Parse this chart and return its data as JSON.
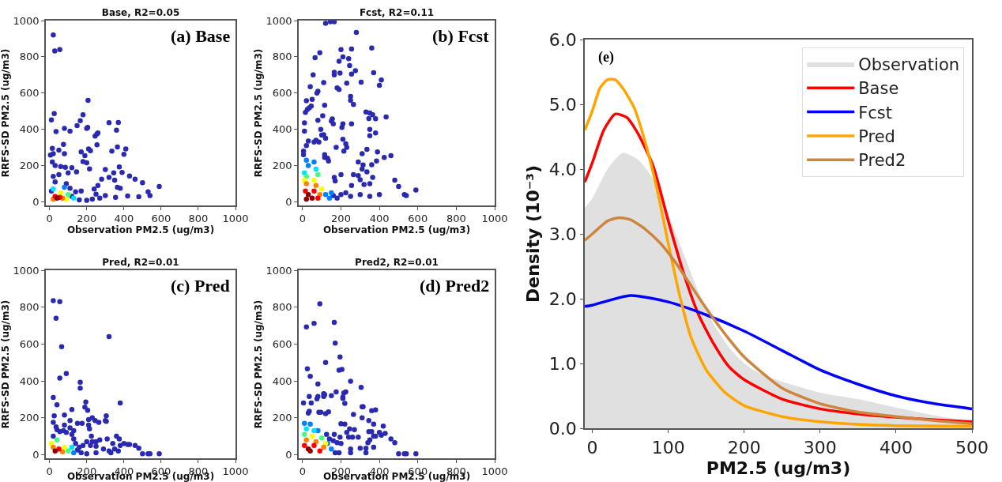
{
  "chart_data": [
    {
      "type": "scatter",
      "title": "Base, R2=0.05",
      "annotations": [
        "(a) Base"
      ],
      "xlabel": "Observation PM2.5 (ug/m3)",
      "ylabel": "RRFS-SD PM2.5 (ug/m3)",
      "marker": "circle",
      "xlim": [
        -20,
        1000
      ],
      "ylim": [
        -20,
        1000
      ],
      "xticks": [
        0,
        200,
        400,
        600,
        800,
        1000
      ],
      "yticks": [
        0,
        200,
        400,
        600,
        800,
        1000
      ],
      "x": [
        20,
        28,
        55,
        25,
        10,
        35,
        80,
        110,
        148,
        165,
        180,
        207,
        205,
        200,
        245,
        255,
        260,
        255,
        75,
        15,
        5,
        20,
        50,
        170,
        210,
        220,
        190,
        320,
        370,
        360,
        400,
        410,
        365,
        335,
        80,
        15,
        30,
        60,
        85,
        120,
        180,
        215,
        200,
        300,
        345,
        390,
        375,
        430,
        460,
        500,
        590,
        530,
        540,
        480,
        420,
        355,
        300,
        270,
        230,
        200,
        160,
        250,
        260,
        280,
        320,
        350,
        365,
        380,
        240,
        145,
        100,
        50,
        20,
        30,
        90,
        110,
        140,
        120,
        170,
        10,
        80,
        20,
        130,
        100,
        90,
        60,
        70,
        20,
        55,
        30,
        40
      ],
      "values": [
        920,
        832,
        840,
        487,
        452,
        388,
        405,
        390,
        420,
        447,
        480,
        560,
        410,
        405,
        362,
        375,
        380,
        315,
        317,
        295,
        258,
        265,
        285,
        275,
        292,
        282,
        255,
        437,
        438,
        395,
        262,
        292,
        303,
        280,
        265,
        220,
        200,
        195,
        190,
        188,
        222,
        182,
        215,
        178,
        160,
        162,
        192,
        142,
        125,
        105,
        85,
        55,
        35,
        28,
        32,
        25,
        35,
        20,
        15,
        8,
        10,
        42,
        90,
        125,
        135,
        120,
        80,
        75,
        70,
        165,
        160,
        150,
        140,
        110,
        100,
        75,
        55,
        30,
        60,
        60,
        80,
        70,
        20,
        40,
        15,
        50,
        20,
        15,
        25,
        30,
        20
      ],
      "colors": [
        "#2a2ab0",
        "#2a2ab0",
        "#2a2ab0",
        "#2a2ab0",
        "#2a2ab0",
        "#2a2ab0",
        "#2a2ab0",
        "#2a2ab0",
        "#2a2ab0",
        "#2a2ab0",
        "#2a2ab0",
        "#2a2ab0",
        "#2a2ab0",
        "#2a2ab0",
        "#2a2ab0",
        "#2a2ab0",
        "#2a2ab0",
        "#2a2ab0",
        "#2a2ab0",
        "#2a2ab0",
        "#2a2ab0",
        "#2a2ab0",
        "#2a2ab0",
        "#2a2ab0",
        "#2a2ab0",
        "#2a2ab0",
        "#2a2ab0",
        "#2a2ab0",
        "#2a2ab0",
        "#2a2ab0",
        "#2a2ab0",
        "#2a2ab0",
        "#2a2ab0",
        "#2a2ab0",
        "#2a2ab0",
        "#2a2ab0",
        "#2a2ab0",
        "#2a2ab0",
        "#2a2ab0",
        "#2a2ab0",
        "#2a2ab0",
        "#2a2ab0",
        "#2a2ab0",
        "#2a2ab0",
        "#2a2ab0",
        "#2a2ab0",
        "#2a2ab0",
        "#2a2ab0",
        "#2a2ab0",
        "#2a2ab0",
        "#2a2ab0",
        "#2a2ab0",
        "#2a2ab0",
        "#2a2ab0",
        "#2a2ab0",
        "#2a2ab0",
        "#2a2ab0",
        "#2a2ab0",
        "#2a2ab0",
        "#2a2ab0",
        "#2a2ab0",
        "#2a2ab0",
        "#2a2ab0",
        "#2a2ab0",
        "#2a2ab0",
        "#2a2ab0",
        "#2a2ab0",
        "#2a2ab0",
        "#2a2ab0",
        "#2a2ab0",
        "#2a2ab0",
        "#2a2ab0",
        "#2a2ab0",
        "#2a2ab0",
        "#2a2ab0",
        "#2a2ab0",
        "#2a2ab0",
        "#2a2ab0",
        "#2a2ab0",
        "#2a2ab0",
        "#0080ff",
        "#00e0ff",
        "#00e0ff",
        "#40ff80",
        "#ffff00",
        "#ffff00",
        "#ff8000",
        "#ff8000",
        "#ff0000",
        "#ff0000",
        "#8b0000"
      ]
    },
    {
      "type": "scatter",
      "title": "Fcst, R2=0.11",
      "annotations": [
        "(b) Fcst"
      ],
      "xlabel": "Observation PM2.5 (ug/m3)",
      "ylabel": "RRFS-SD PM2.5 (ug/m3)",
      "marker": "circle",
      "xlim": [
        -20,
        1000
      ],
      "ylim": [
        -20,
        1000
      ],
      "xticks": [
        0,
        200,
        400,
        600,
        800,
        1000
      ],
      "yticks": [
        0,
        200,
        400,
        600,
        800,
        1000
      ],
      "x": [
        120,
        145,
        165,
        280,
        360,
        255,
        200,
        90,
        65,
        210,
        240,
        190,
        245,
        165,
        195,
        275,
        165,
        255,
        370,
        410,
        400,
        305,
        230,
        110,
        55,
        40,
        75,
        80,
        180,
        190,
        20,
        50,
        15,
        25,
        35,
        45,
        115,
        250,
        250,
        265,
        330,
        350,
        365,
        380,
        345,
        435,
        105,
        80,
        150,
        155,
        210,
        160,
        205,
        95,
        255,
        10,
        10,
        350,
        350,
        380,
        100,
        110,
        120,
        70,
        85,
        30,
        60,
        20,
        5,
        210,
        225,
        230,
        215,
        175,
        335,
        310,
        390,
        460,
        425,
        385,
        290,
        360,
        315,
        310,
        335,
        365,
        265,
        290,
        300,
        480,
        500,
        590,
        530,
        540,
        320,
        255,
        350,
        400,
        350,
        300,
        250,
        225,
        200,
        160,
        180,
        115,
        130,
        5,
        115,
        135,
        165,
        200,
        170,
        120,
        150,
        140,
        20,
        60,
        30,
        10,
        70,
        20,
        80,
        10,
        60,
        100,
        20,
        70,
        90,
        15,
        60,
        80,
        30,
        50,
        20
      ],
      "values": [
        985,
        993,
        993,
        935,
        848,
        843,
        840,
        822,
        795,
        800,
        790,
        775,
        752,
        715,
        710,
        723,
        700,
        705,
        712,
        672,
        643,
        660,
        655,
        658,
        700,
        635,
        600,
        610,
        628,
        620,
        558,
        565,
        493,
        510,
        518,
        528,
        533,
        582,
        560,
        537,
        495,
        490,
        480,
        458,
        460,
        468,
        475,
        450,
        445,
        457,
        430,
        430,
        410,
        400,
        430,
        435,
        390,
        365,
        400,
        380,
        368,
        370,
        350,
        340,
        330,
        335,
        330,
        310,
        280,
        345,
        320,
        300,
        280,
        300,
        290,
        265,
        275,
        255,
        245,
        225,
        220,
        205,
        203,
        180,
        165,
        135,
        150,
        145,
        122,
        120,
        85,
        65,
        40,
        35,
        95,
        90,
        100,
        40,
        30,
        40,
        30,
        50,
        40,
        35,
        20,
        260,
        240,
        260,
        245,
        225,
        135,
        150,
        115,
        40,
        50,
        20,
        230,
        220,
        200,
        160,
        180,
        140,
        150,
        120,
        120,
        70,
        100,
        90,
        40,
        60,
        60,
        20,
        40,
        20,
        15
      ],
      "colors": [
        "#2a2ab0",
        "#2a2ab0",
        "#2a2ab0",
        "#2a2ab0",
        "#2a2ab0",
        "#2a2ab0",
        "#2a2ab0",
        "#2a2ab0",
        "#2a2ab0",
        "#2a2ab0",
        "#2a2ab0",
        "#2a2ab0",
        "#2a2ab0",
        "#2a2ab0",
        "#2a2ab0",
        "#2a2ab0",
        "#2a2ab0",
        "#2a2ab0",
        "#2a2ab0",
        "#2a2ab0",
        "#2a2ab0",
        "#2a2ab0",
        "#2a2ab0",
        "#2a2ab0",
        "#2a2ab0",
        "#2a2ab0",
        "#2a2ab0",
        "#2a2ab0",
        "#2a2ab0",
        "#2a2ab0",
        "#2a2ab0",
        "#2a2ab0",
        "#2a2ab0",
        "#2a2ab0",
        "#2a2ab0",
        "#2a2ab0",
        "#2a2ab0",
        "#2a2ab0",
        "#2a2ab0",
        "#2a2ab0",
        "#2a2ab0",
        "#2a2ab0",
        "#2a2ab0",
        "#2a2ab0",
        "#2a2ab0",
        "#2a2ab0",
        "#2a2ab0",
        "#2a2ab0",
        "#2a2ab0",
        "#2a2ab0",
        "#2a2ab0",
        "#2a2ab0",
        "#2a2ab0",
        "#2a2ab0",
        "#2a2ab0",
        "#2a2ab0",
        "#2a2ab0",
        "#2a2ab0",
        "#2a2ab0",
        "#2a2ab0",
        "#2a2ab0",
        "#2a2ab0",
        "#2a2ab0",
        "#2a2ab0",
        "#2a2ab0",
        "#2a2ab0",
        "#2a2ab0",
        "#2a2ab0",
        "#2a2ab0",
        "#2a2ab0",
        "#2a2ab0",
        "#2a2ab0",
        "#2a2ab0",
        "#2a2ab0",
        "#2a2ab0",
        "#2a2ab0",
        "#2a2ab0",
        "#2a2ab0",
        "#2a2ab0",
        "#2a2ab0",
        "#2a2ab0",
        "#2a2ab0",
        "#2a2ab0",
        "#2a2ab0",
        "#2a2ab0",
        "#2a2ab0",
        "#2a2ab0",
        "#2a2ab0",
        "#2a2ab0",
        "#2a2ab0",
        "#2a2ab0",
        "#2a2ab0",
        "#2a2ab0",
        "#2a2ab0",
        "#2a2ab0",
        "#2a2ab0",
        "#2a2ab0",
        "#2a2ab0",
        "#2a2ab0",
        "#2a2ab0",
        "#2a2ab0",
        "#2a2ab0",
        "#2a2ab0",
        "#2a2ab0",
        "#2a2ab0",
        "#2a2ab0",
        "#2a2ab0",
        "#2a2ab0",
        "#2a2ab0",
        "#2a2ab0",
        "#2a2ab0",
        "#2a2ab0",
        "#2a2ab0",
        "#0080ff",
        "#0080ff",
        "#0080ff",
        "#0080ff",
        "#0080ff",
        "#0080ff",
        "#00e0ff",
        "#00e0ff",
        "#40ff80",
        "#40ff80",
        "#ffff00",
        "#ffff00",
        "#ffff00",
        "#ff8000",
        "#ff8000",
        "#ff8000",
        "#ff0000",
        "#ff0000",
        "#ff0000",
        "#8b0000",
        "#8b0000",
        "#8b0000"
      ]
    },
    {
      "type": "scatter",
      "title": "Pred, R2=0.01",
      "annotations": [
        "(c) Pred"
      ],
      "xlabel": "Observation PM2.5 (ug/m3)",
      "ylabel": "RRFS-SD PM2.5 (ug/m3)",
      "marker": "circle",
      "xlim": [
        -20,
        1000
      ],
      "ylim": [
        -20,
        1000
      ],
      "xticks": [
        0,
        200,
        400,
        600,
        800,
        1000
      ],
      "yticks": [
        0,
        200,
        400,
        600,
        800,
        1000
      ],
      "x": [
        20,
        55,
        35,
        65,
        90,
        55,
        320,
        165,
        165,
        20,
        40,
        380,
        195,
        190,
        205,
        120,
        80,
        25,
        20,
        230,
        305,
        300,
        305,
        245,
        265,
        210,
        150,
        175,
        110,
        80,
        35,
        40,
        55,
        90,
        75,
        130,
        110,
        210,
        215,
        225,
        120,
        130,
        360,
        375,
        340,
        400,
        420,
        430,
        460,
        480,
        500,
        530,
        540,
        590,
        310,
        270,
        250,
        230,
        200,
        220,
        250,
        290,
        320,
        330,
        350,
        370,
        380,
        180,
        160,
        150,
        170,
        200,
        250,
        140,
        20,
        130,
        120,
        100,
        40,
        10,
        80,
        20,
        70,
        50,
        30
      ],
      "values": [
        835,
        830,
        740,
        585,
        440,
        415,
        640,
        393,
        360,
        310,
        270,
        280,
        285,
        258,
        240,
        245,
        215,
        210,
        175,
        200,
        210,
        185,
        180,
        185,
        175,
        190,
        170,
        170,
        185,
        160,
        150,
        135,
        125,
        120,
        130,
        130,
        145,
        160,
        140,
        100,
        110,
        85,
        100,
        85,
        60,
        60,
        55,
        55,
        50,
        35,
        5,
        5,
        5,
        5,
        85,
        80,
        70,
        70,
        70,
        50,
        45,
        30,
        20,
        10,
        30,
        20,
        50,
        50,
        40,
        25,
        10,
        5,
        10,
        60,
        100,
        10,
        40,
        20,
        80,
        60,
        40,
        40,
        15,
        30,
        20
      ],
      "colors": [
        "#2a2ab0",
        "#2a2ab0",
        "#2a2ab0",
        "#2a2ab0",
        "#2a2ab0",
        "#2a2ab0",
        "#2a2ab0",
        "#2a2ab0",
        "#2a2ab0",
        "#2a2ab0",
        "#2a2ab0",
        "#2a2ab0",
        "#2a2ab0",
        "#2a2ab0",
        "#2a2ab0",
        "#2a2ab0",
        "#2a2ab0",
        "#2a2ab0",
        "#2a2ab0",
        "#2a2ab0",
        "#2a2ab0",
        "#2a2ab0",
        "#2a2ab0",
        "#2a2ab0",
        "#2a2ab0",
        "#2a2ab0",
        "#2a2ab0",
        "#2a2ab0",
        "#2a2ab0",
        "#2a2ab0",
        "#2a2ab0",
        "#2a2ab0",
        "#2a2ab0",
        "#2a2ab0",
        "#2a2ab0",
        "#2a2ab0",
        "#2a2ab0",
        "#2a2ab0",
        "#2a2ab0",
        "#2a2ab0",
        "#2a2ab0",
        "#2a2ab0",
        "#2a2ab0",
        "#2a2ab0",
        "#2a2ab0",
        "#2a2ab0",
        "#2a2ab0",
        "#2a2ab0",
        "#2a2ab0",
        "#2a2ab0",
        "#2a2ab0",
        "#2a2ab0",
        "#2a2ab0",
        "#2a2ab0",
        "#2a2ab0",
        "#2a2ab0",
        "#2a2ab0",
        "#2a2ab0",
        "#2a2ab0",
        "#2a2ab0",
        "#2a2ab0",
        "#2a2ab0",
        "#2a2ab0",
        "#2a2ab0",
        "#2a2ab0",
        "#2a2ab0",
        "#2a2ab0",
        "#2a2ab0",
        "#2a2ab0",
        "#2a2ab0",
        "#2a2ab0",
        "#2a2ab0",
        "#2a2ab0",
        "#2a2ab0",
        "#2a2ab0",
        "#0080ff",
        "#00e0ff",
        "#40ff80",
        "#40ff80",
        "#ffff00",
        "#ffff00",
        "#ff8000",
        "#ff8000",
        "#ff0000",
        "#8b0000"
      ]
    },
    {
      "type": "scatter",
      "title": "Pred2, R2=0.01",
      "annotations": [
        "(d) Pred2"
      ],
      "xlabel": "Observation PM2.5 (ug/m3)",
      "ylabel": "RRFS-SD PM2.5 (ug/m3)",
      "marker": "circle",
      "xlim": [
        -20,
        1000
      ],
      "ylim": [
        -20,
        1000
      ],
      "xticks": [
        0,
        200,
        400,
        600,
        800,
        1000
      ],
      "yticks": [
        0,
        200,
        400,
        600,
        800,
        1000
      ],
      "x": [
        90,
        20,
        60,
        165,
        170,
        195,
        205,
        190,
        120,
        25,
        40,
        250,
        80,
        305,
        175,
        225,
        215,
        210,
        210,
        110,
        115,
        35,
        80,
        75,
        150,
        110,
        5,
        45,
        220,
        310,
        315,
        360,
        380,
        35,
        30,
        85,
        95,
        135,
        120,
        265,
        310,
        200,
        220,
        345,
        370,
        420,
        245,
        270,
        230,
        345,
        360,
        400,
        430,
        410,
        370,
        380,
        290,
        260,
        240,
        195,
        165,
        140,
        160,
        180,
        200,
        350,
        340,
        330,
        300,
        250,
        250,
        330,
        370,
        460,
        480,
        500,
        540,
        530,
        590,
        170,
        190,
        125,
        150,
        130,
        10,
        40,
        80,
        20,
        60,
        10,
        100,
        50,
        120,
        70,
        20,
        110,
        10,
        90,
        60,
        30,
        40
      ],
      "values": [
        818,
        693,
        712,
        717,
        605,
        530,
        462,
        458,
        500,
        465,
        425,
        398,
        383,
        365,
        340,
        340,
        335,
        312,
        305,
        330,
        325,
        315,
        315,
        303,
        320,
        315,
        280,
        280,
        278,
        260,
        260,
        238,
        242,
        235,
        225,
        230,
        230,
        232,
        222,
        218,
        200,
        167,
        165,
        185,
        165,
        155,
        140,
        135,
        120,
        125,
        125,
        120,
        115,
        105,
        100,
        100,
        95,
        95,
        95,
        95,
        110,
        85,
        75,
        65,
        60,
        80,
        65,
        35,
        35,
        30,
        10,
        10,
        40,
        85,
        65,
        5,
        5,
        5,
        5,
        10,
        10,
        110,
        30,
        60,
        170,
        165,
        130,
        140,
        130,
        110,
        90,
        100,
        60,
        70,
        80,
        40,
        50,
        20,
        50,
        30,
        20
      ],
      "colors": [
        "#2a2ab0",
        "#2a2ab0",
        "#2a2ab0",
        "#2a2ab0",
        "#2a2ab0",
        "#2a2ab0",
        "#2a2ab0",
        "#2a2ab0",
        "#2a2ab0",
        "#2a2ab0",
        "#2a2ab0",
        "#2a2ab0",
        "#2a2ab0",
        "#2a2ab0",
        "#2a2ab0",
        "#2a2ab0",
        "#2a2ab0",
        "#2a2ab0",
        "#2a2ab0",
        "#2a2ab0",
        "#2a2ab0",
        "#2a2ab0",
        "#2a2ab0",
        "#2a2ab0",
        "#2a2ab0",
        "#2a2ab0",
        "#2a2ab0",
        "#2a2ab0",
        "#2a2ab0",
        "#2a2ab0",
        "#2a2ab0",
        "#2a2ab0",
        "#2a2ab0",
        "#2a2ab0",
        "#2a2ab0",
        "#2a2ab0",
        "#2a2ab0",
        "#2a2ab0",
        "#2a2ab0",
        "#2a2ab0",
        "#2a2ab0",
        "#2a2ab0",
        "#2a2ab0",
        "#2a2ab0",
        "#2a2ab0",
        "#2a2ab0",
        "#2a2ab0",
        "#2a2ab0",
        "#2a2ab0",
        "#2a2ab0",
        "#2a2ab0",
        "#2a2ab0",
        "#2a2ab0",
        "#2a2ab0",
        "#2a2ab0",
        "#2a2ab0",
        "#2a2ab0",
        "#2a2ab0",
        "#2a2ab0",
        "#2a2ab0",
        "#2a2ab0",
        "#2a2ab0",
        "#2a2ab0",
        "#2a2ab0",
        "#2a2ab0",
        "#2a2ab0",
        "#2a2ab0",
        "#2a2ab0",
        "#2a2ab0",
        "#2a2ab0",
        "#2a2ab0",
        "#2a2ab0",
        "#2a2ab0",
        "#2a2ab0",
        "#2a2ab0",
        "#2a2ab0",
        "#2a2ab0",
        "#2a2ab0",
        "#2a2ab0",
        "#2a2ab0",
        "#2a2ab0",
        "#2a2ab0",
        "#0080ff",
        "#0080ff",
        "#0080ff",
        "#0080ff",
        "#0080ff",
        "#00e0ff",
        "#00e0ff",
        "#40ff80",
        "#40ff80",
        "#ffff00",
        "#ffff00",
        "#ff8000",
        "#ff8000",
        "#ff8000",
        "#ff0000",
        "#ff0000",
        "#ff0000",
        "#8b0000",
        "#8b0000"
      ]
    },
    {
      "type": "line",
      "annotations": [
        "(e)"
      ],
      "xlabel": "PM2.5 (ug/m3)",
      "ylabel": "Density (10⁻³)",
      "legend": "top right",
      "xlim": [
        -10,
        500
      ],
      "ylim": [
        0,
        6
      ],
      "xticks": [
        0,
        100,
        200,
        300,
        400,
        500
      ],
      "yticks": [
        {
          "value": 0,
          "label": "0.0"
        },
        {
          "value": 1,
          "label": "1.0"
        },
        {
          "value": 2,
          "label": "2.0"
        },
        {
          "value": 3,
          "label": "3.0"
        },
        {
          "value": 4,
          "label": "4.0"
        },
        {
          "value": 5,
          "label": "5.0"
        },
        {
          "value": 6,
          "label": "6.0"
        }
      ],
      "series": [
        {
          "name": "Observation",
          "type": "area",
          "color": "#e0e0e0",
          "x": [
            -10,
            0,
            20,
            40,
            60,
            80,
            100,
            120,
            140,
            160,
            180,
            200,
            220,
            250,
            300,
            350,
            400,
            450,
            500
          ],
          "values": [
            3.4,
            3.55,
            4.0,
            4.25,
            4.15,
            3.85,
            3.3,
            2.7,
            2.1,
            1.6,
            1.25,
            1.0,
            0.85,
            0.72,
            0.55,
            0.45,
            0.32,
            0.2,
            0.1
          ]
        },
        {
          "name": "Base",
          "color": "#ff0000",
          "x": [
            -10,
            0,
            15,
            30,
            45,
            60,
            80,
            100,
            120,
            140,
            160,
            180,
            200,
            250,
            300,
            350,
            400,
            450,
            500
          ],
          "values": [
            3.8,
            4.1,
            4.6,
            4.85,
            4.8,
            4.55,
            4.05,
            3.2,
            2.4,
            1.75,
            1.3,
            0.95,
            0.75,
            0.45,
            0.3,
            0.22,
            0.17,
            0.13,
            0.1
          ]
        },
        {
          "name": "Fcst",
          "color": "#0000ff",
          "x": [
            -10,
            0,
            50,
            100,
            150,
            200,
            250,
            300,
            350,
            400,
            450,
            500
          ],
          "values": [
            1.88,
            1.9,
            2.05,
            1.95,
            1.75,
            1.5,
            1.2,
            0.9,
            0.68,
            0.5,
            0.38,
            0.3
          ]
        },
        {
          "name": "Pred",
          "color": "#ffa500",
          "x": [
            -10,
            0,
            10,
            20,
            30,
            40,
            55,
            70,
            85,
            100,
            115,
            130,
            150,
            175,
            200,
            250,
            300,
            350,
            400,
            500
          ],
          "values": [
            4.6,
            4.9,
            5.25,
            5.38,
            5.38,
            5.25,
            4.95,
            4.4,
            3.7,
            2.85,
            2.05,
            1.4,
            0.9,
            0.55,
            0.35,
            0.18,
            0.1,
            0.06,
            0.04,
            0.03
          ]
        },
        {
          "name": "Pred2",
          "color": "#cd853f",
          "x": [
            -10,
            0,
            20,
            35,
            50,
            70,
            90,
            110,
            130,
            150,
            175,
            200,
            250,
            300,
            350,
            400,
            450,
            500
          ],
          "values": [
            2.9,
            3.0,
            3.2,
            3.25,
            3.22,
            3.07,
            2.85,
            2.55,
            2.2,
            1.85,
            1.45,
            1.1,
            0.62,
            0.38,
            0.25,
            0.18,
            0.12,
            0.07
          ]
        }
      ]
    }
  ]
}
